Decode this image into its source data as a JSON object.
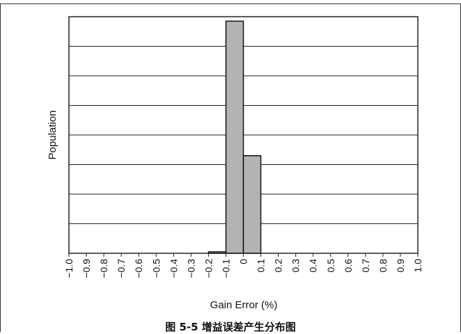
{
  "caption": "图 5-5  增益误差产生分布图",
  "chart_data": {
    "type": "bar",
    "title": "",
    "xlabel": "Gain Error (%)",
    "ylabel": "Population",
    "xlim": [
      -1.0,
      1.0
    ],
    "ylim": [
      0,
      8
    ],
    "x_ticks": [
      "-1.0",
      "-0.9",
      "-0.8",
      "-0.7",
      "-0.6",
      "-0.5",
      "-0.4",
      "-0.3",
      "-0.2",
      "-0.1",
      "0",
      "0.1",
      "0.2",
      "0.3",
      "0.4",
      "0.5",
      "0.6",
      "0.7",
      "0.8",
      "0.9",
      "1.0"
    ],
    "y_gridlines": [
      1,
      2,
      3,
      4,
      5,
      6,
      7
    ],
    "bin_width": 0.1,
    "bins": [
      {
        "from": -0.2,
        "to": -0.1,
        "value": 0.05
      },
      {
        "from": -0.1,
        "to": 0.0,
        "value": 7.85
      },
      {
        "from": 0.0,
        "to": 0.1,
        "value": 3.3
      }
    ],
    "bar_color": "#b3b3b3",
    "grid": true
  }
}
